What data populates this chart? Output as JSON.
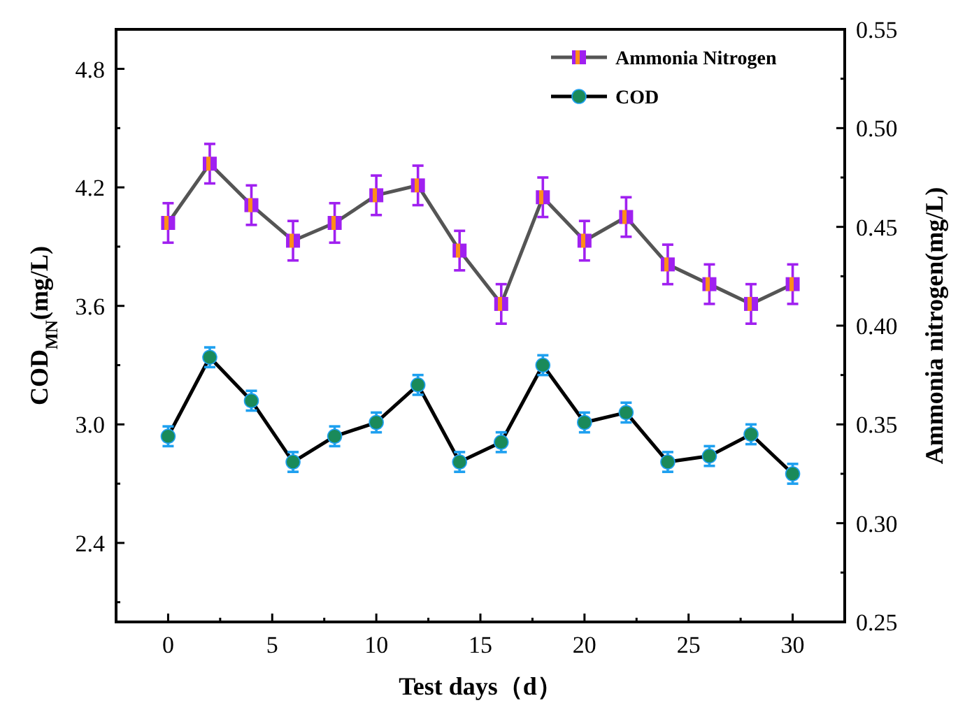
{
  "chart_data": {
    "type": "line",
    "xlabel": "Test days（d）",
    "ylabel": "COD$_{MN}$(mg/L)",
    "y2label": "Ammonia nitrogen(mg/L)",
    "x": [
      0,
      2,
      4,
      6,
      8,
      10,
      12,
      14,
      16,
      18,
      20,
      22,
      24,
      26,
      28,
      30
    ],
    "xlim": [
      -2.5,
      32.5
    ],
    "xticks": [
      0,
      {
        "value": 2.5,
        "label": null
      },
      5,
      {
        "value": 7.5,
        "label": null
      },
      10,
      {
        "value": 12.5,
        "label": null
      },
      15,
      {
        "value": 17.5,
        "label": null
      },
      20,
      {
        "value": 22.5,
        "label": null
      },
      25,
      {
        "value": 27.5,
        "label": null
      },
      30
    ],
    "ylim": [
      2.0,
      5.0
    ],
    "yticks": [
      {
        "value": 2.1,
        "label": null
      },
      2.4,
      {
        "value": 2.7,
        "label": null
      },
      {
        "value": 3,
        "label": "3.0"
      },
      {
        "value": 3.3,
        "label": null
      },
      3.6,
      {
        "value": 3.9,
        "label": null
      },
      4.2,
      {
        "value": 4.5,
        "label": null
      },
      4.8
    ],
    "y2lim": [
      0.25,
      0.55
    ],
    "y2ticks": [
      0.25,
      {
        "value": 0.275,
        "label": null
      },
      {
        "value": 0.3,
        "label": "0.30"
      },
      {
        "value": 0.325,
        "label": null
      },
      0.35,
      {
        "value": 0.375,
        "label": null
      },
      {
        "value": 0.4,
        "label": "0.40"
      },
      {
        "value": 0.425,
        "label": null
      },
      0.45,
      {
        "value": 0.475,
        "label": null
      },
      {
        "value": 0.5,
        "label": "0.50"
      },
      {
        "value": 0.525,
        "label": null
      },
      0.55
    ],
    "legend": "top right",
    "grid": false,
    "series": [
      {
        "name": "Ammonia Nitrogen",
        "axis": "y2",
        "color": "#555555",
        "marker": "square",
        "values": [
          0.452,
          0.482,
          0.461,
          0.443,
          0.452,
          0.466,
          0.471,
          0.438,
          0.411,
          0.465,
          0.443,
          0.455,
          0.431,
          0.421,
          0.411,
          0.421
        ],
        "errors": [
          0.01,
          0.01,
          0.01,
          0.01,
          0.01,
          0.01,
          0.01,
          0.01,
          0.01,
          0.01,
          0.01,
          0.01,
          0.01,
          0.01,
          0.01,
          0.01
        ]
      },
      {
        "name": "COD",
        "color": "#000000",
        "marker": "circle",
        "values": [
          2.94,
          3.34,
          3.12,
          2.81,
          2.94,
          3.01,
          3.2,
          2.81,
          2.91,
          3.3,
          3.01,
          3.06,
          2.81,
          2.84,
          2.95,
          2.75
        ],
        "errors": [
          0.05,
          0.05,
          0.05,
          0.05,
          0.05,
          0.05,
          0.05,
          0.05,
          0.05,
          0.05,
          0.05,
          0.05,
          0.05,
          0.05,
          0.05,
          0.05
        ]
      }
    ]
  }
}
